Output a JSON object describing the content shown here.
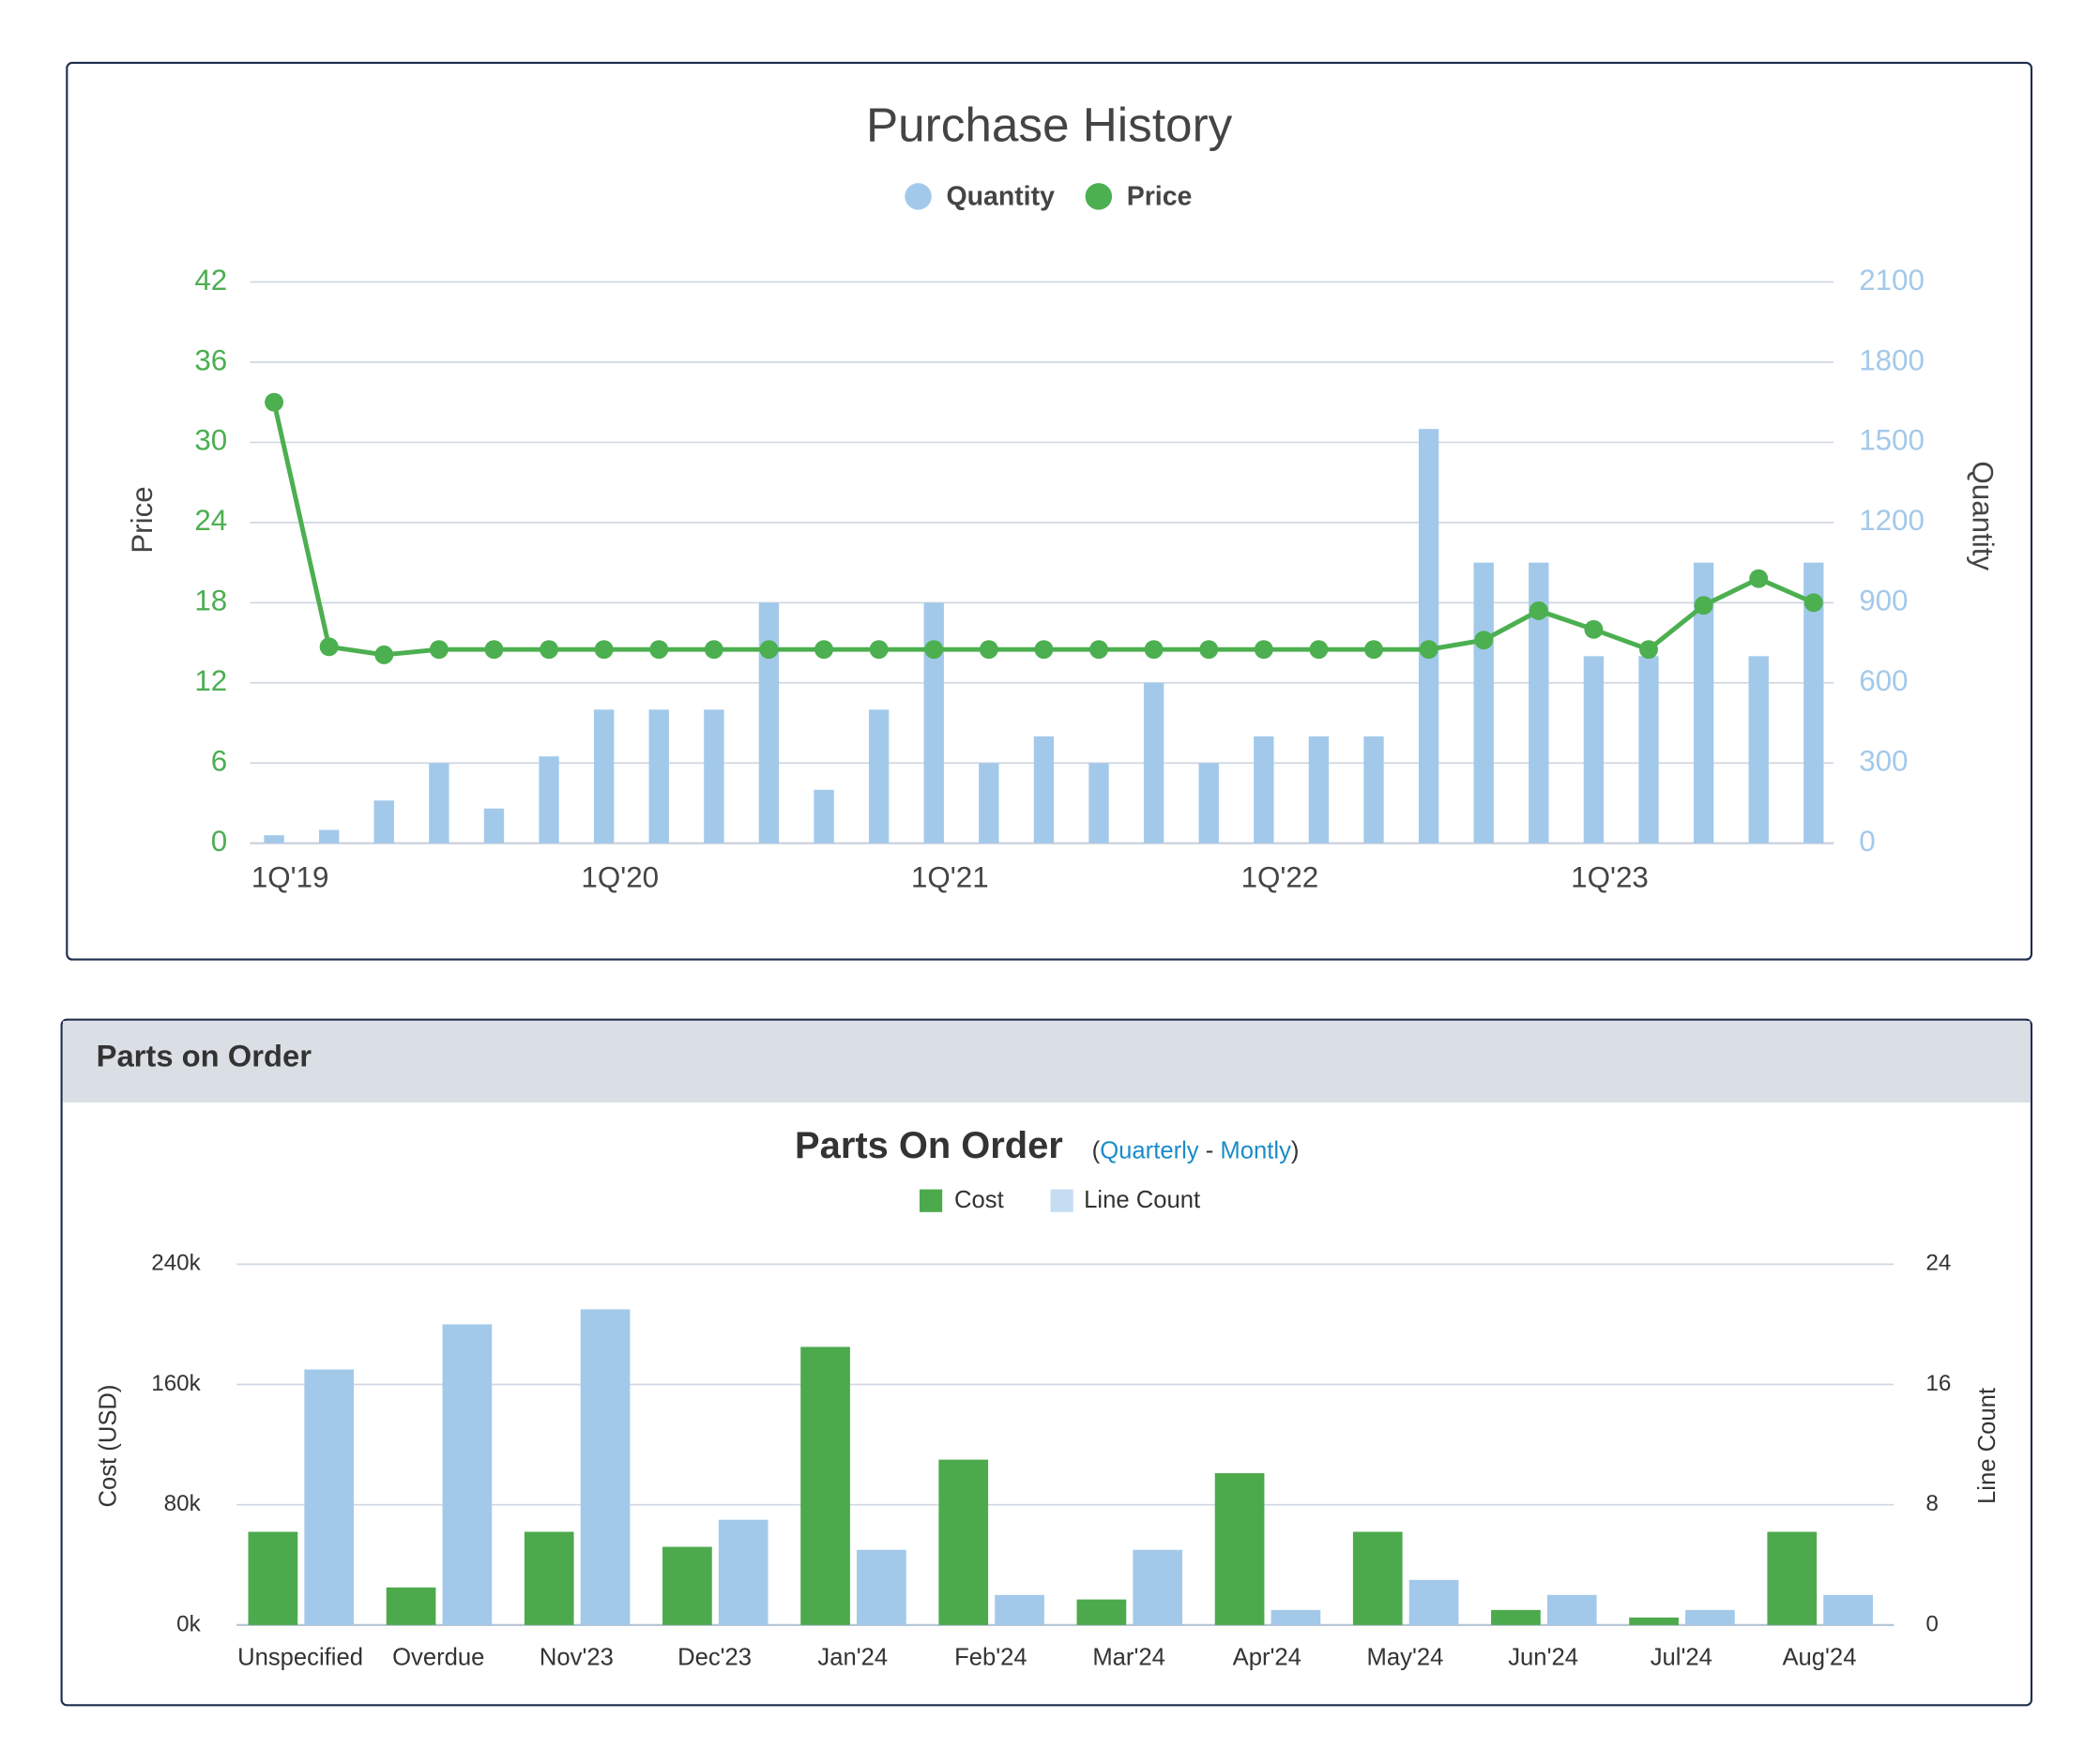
{
  "parts_panel": {
    "title": "Parts on Order"
  },
  "chart_data": [
    {
      "type": "combo",
      "title": "Purchase History",
      "categories": [
        "1Q'19",
        null,
        null,
        null,
        null,
        null,
        "1Q'20",
        null,
        null,
        null,
        null,
        null,
        "1Q'21",
        null,
        null,
        null,
        null,
        null,
        "1Q'22",
        null,
        null,
        null,
        null,
        null,
        "1Q'23",
        null,
        null,
        null,
        null
      ],
      "series": [
        {
          "name": "Quantity",
          "color": "#a3c9ea",
          "axis": "y2",
          "kind": "bar",
          "values": [
            30,
            50,
            160,
            300,
            130,
            325,
            500,
            500,
            500,
            900,
            200,
            500,
            900,
            300,
            400,
            300,
            600,
            300,
            400,
            400,
            400,
            1550,
            1050,
            1050,
            700,
            700,
            1050,
            700,
            1050
          ]
        },
        {
          "name": "Price",
          "color": "#4caf50",
          "axis": "y",
          "kind": "line",
          "values": [
            33,
            14.7,
            14.1,
            14.5,
            14.5,
            14.5,
            14.5,
            14.5,
            14.5,
            14.5,
            14.5,
            14.5,
            14.5,
            14.5,
            14.5,
            14.5,
            14.5,
            14.5,
            14.5,
            14.5,
            14.5,
            14.5,
            15.2,
            17.4,
            16,
            14.5,
            17.8,
            19.8,
            18
          ]
        }
      ],
      "y_label": "Price",
      "y2_label": "Quantity",
      "ylim": [
        0,
        42
      ],
      "yticks": [
        0,
        6,
        12,
        18,
        24,
        30,
        36,
        42
      ],
      "y2lim": [
        0,
        2100
      ],
      "y2ticks": [
        0,
        300,
        600,
        900,
        1200,
        1500,
        1800,
        2100
      ],
      "grid": true
    },
    {
      "type": "bar",
      "title": "Parts On Order",
      "period_links": {
        "open": "(",
        "items": [
          "Quarterly",
          "Montly"
        ],
        "separator": " - ",
        "close": ")"
      },
      "categories": [
        "Unspecified",
        "Overdue",
        "Nov'23",
        "Dec'23",
        "Jan'24",
        "Feb'24",
        "Mar'24",
        "Apr'24",
        "May'24",
        "Jun'24",
        "Jul'24",
        "Aug'24"
      ],
      "series": [
        {
          "name": "Cost",
          "color": "#4caa4c",
          "axis": "y",
          "values": [
            62000,
            25000,
            62000,
            52000,
            185000,
            110000,
            17000,
            101000,
            62000,
            10000,
            5000,
            62000
          ]
        },
        {
          "name": "Line Count",
          "color": "#a3c9ea",
          "axis": "y2",
          "values": [
            17,
            20,
            21,
            7,
            5,
            2,
            5,
            1,
            3,
            2,
            1,
            2
          ]
        }
      ],
      "y_label": "Cost (USD)",
      "y2_label": "Line Count",
      "ylim": [
        0,
        240000
      ],
      "yticks": [
        {
          "value": 0,
          "label": "0k"
        },
        {
          "value": 80000,
          "label": "80k"
        },
        {
          "value": 160000,
          "label": "160k"
        },
        {
          "value": 240000,
          "label": "240k"
        }
      ],
      "y2lim": [
        0,
        24
      ],
      "y2ticks": [
        0,
        8,
        16,
        24
      ],
      "grid": true
    }
  ]
}
